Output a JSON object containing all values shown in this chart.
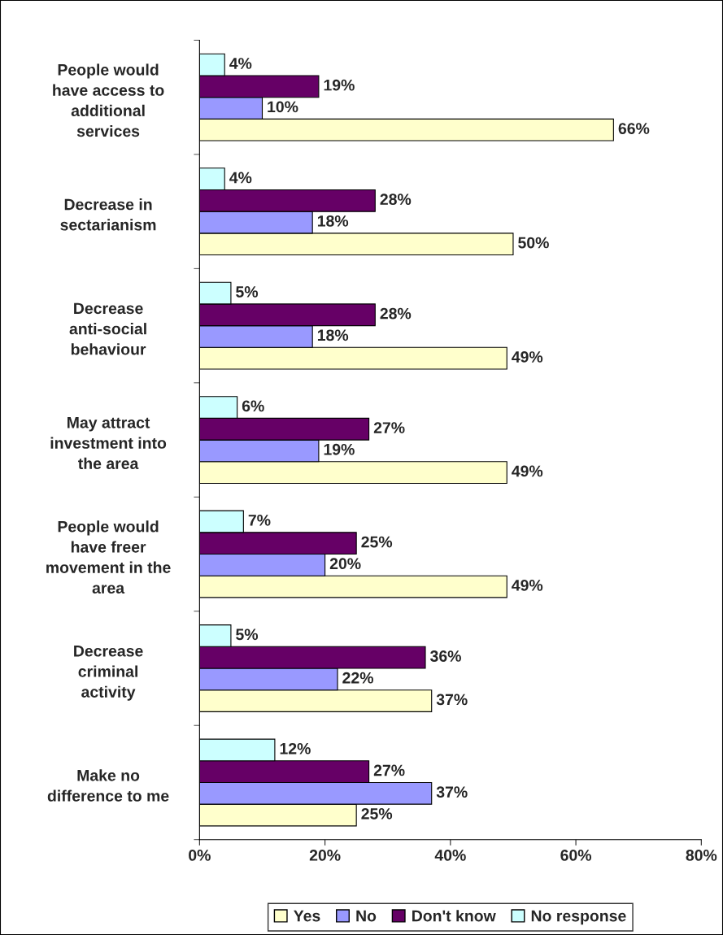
{
  "chart_data": {
    "type": "bar",
    "orientation": "horizontal",
    "categories": [
      "People would have access to additional services",
      "Decrease in sectarianism",
      "Decrease anti-social behaviour",
      "May attract investment into the area",
      "People would have freer movement in the area",
      "Decrease criminal activity",
      "Make no difference to me"
    ],
    "series": [
      {
        "name": "Yes",
        "color": "#ffffcc",
        "values": [
          66,
          50,
          49,
          49,
          49,
          37,
          25
        ],
        "value_labels": [
          "66%",
          "50%",
          "49%",
          "49%",
          "49%",
          "37%",
          "25%"
        ]
      },
      {
        "name": "No",
        "color": "#9999ff",
        "values": [
          10,
          18,
          18,
          19,
          20,
          22,
          37
        ],
        "value_labels": [
          "10%",
          "18%",
          "18%",
          "19%",
          "20%",
          "22%",
          "37%"
        ]
      },
      {
        "name": "Don't know",
        "color": "#660066",
        "values": [
          19,
          28,
          28,
          27,
          25,
          36,
          27
        ],
        "value_labels": [
          "19%",
          "28%",
          "28%",
          "27%",
          "25%",
          "36%",
          "27%"
        ]
      },
      {
        "name": "No response",
        "color": "#ccffff",
        "values": [
          4,
          4,
          5,
          6,
          7,
          5,
          12
        ],
        "value_labels": [
          "4%",
          "4%",
          "5%",
          "6%",
          "7%",
          "5%",
          "12%"
        ]
      }
    ],
    "xlim": [
      0,
      80
    ],
    "xticks": [
      {
        "value": 0,
        "label": "0%"
      },
      {
        "value": 20,
        "label": "20%"
      },
      {
        "value": 40,
        "label": "40%"
      },
      {
        "value": 60,
        "label": "60%"
      },
      {
        "value": 80,
        "label": "80%"
      }
    ],
    "grid": false,
    "legend": "bottom"
  }
}
